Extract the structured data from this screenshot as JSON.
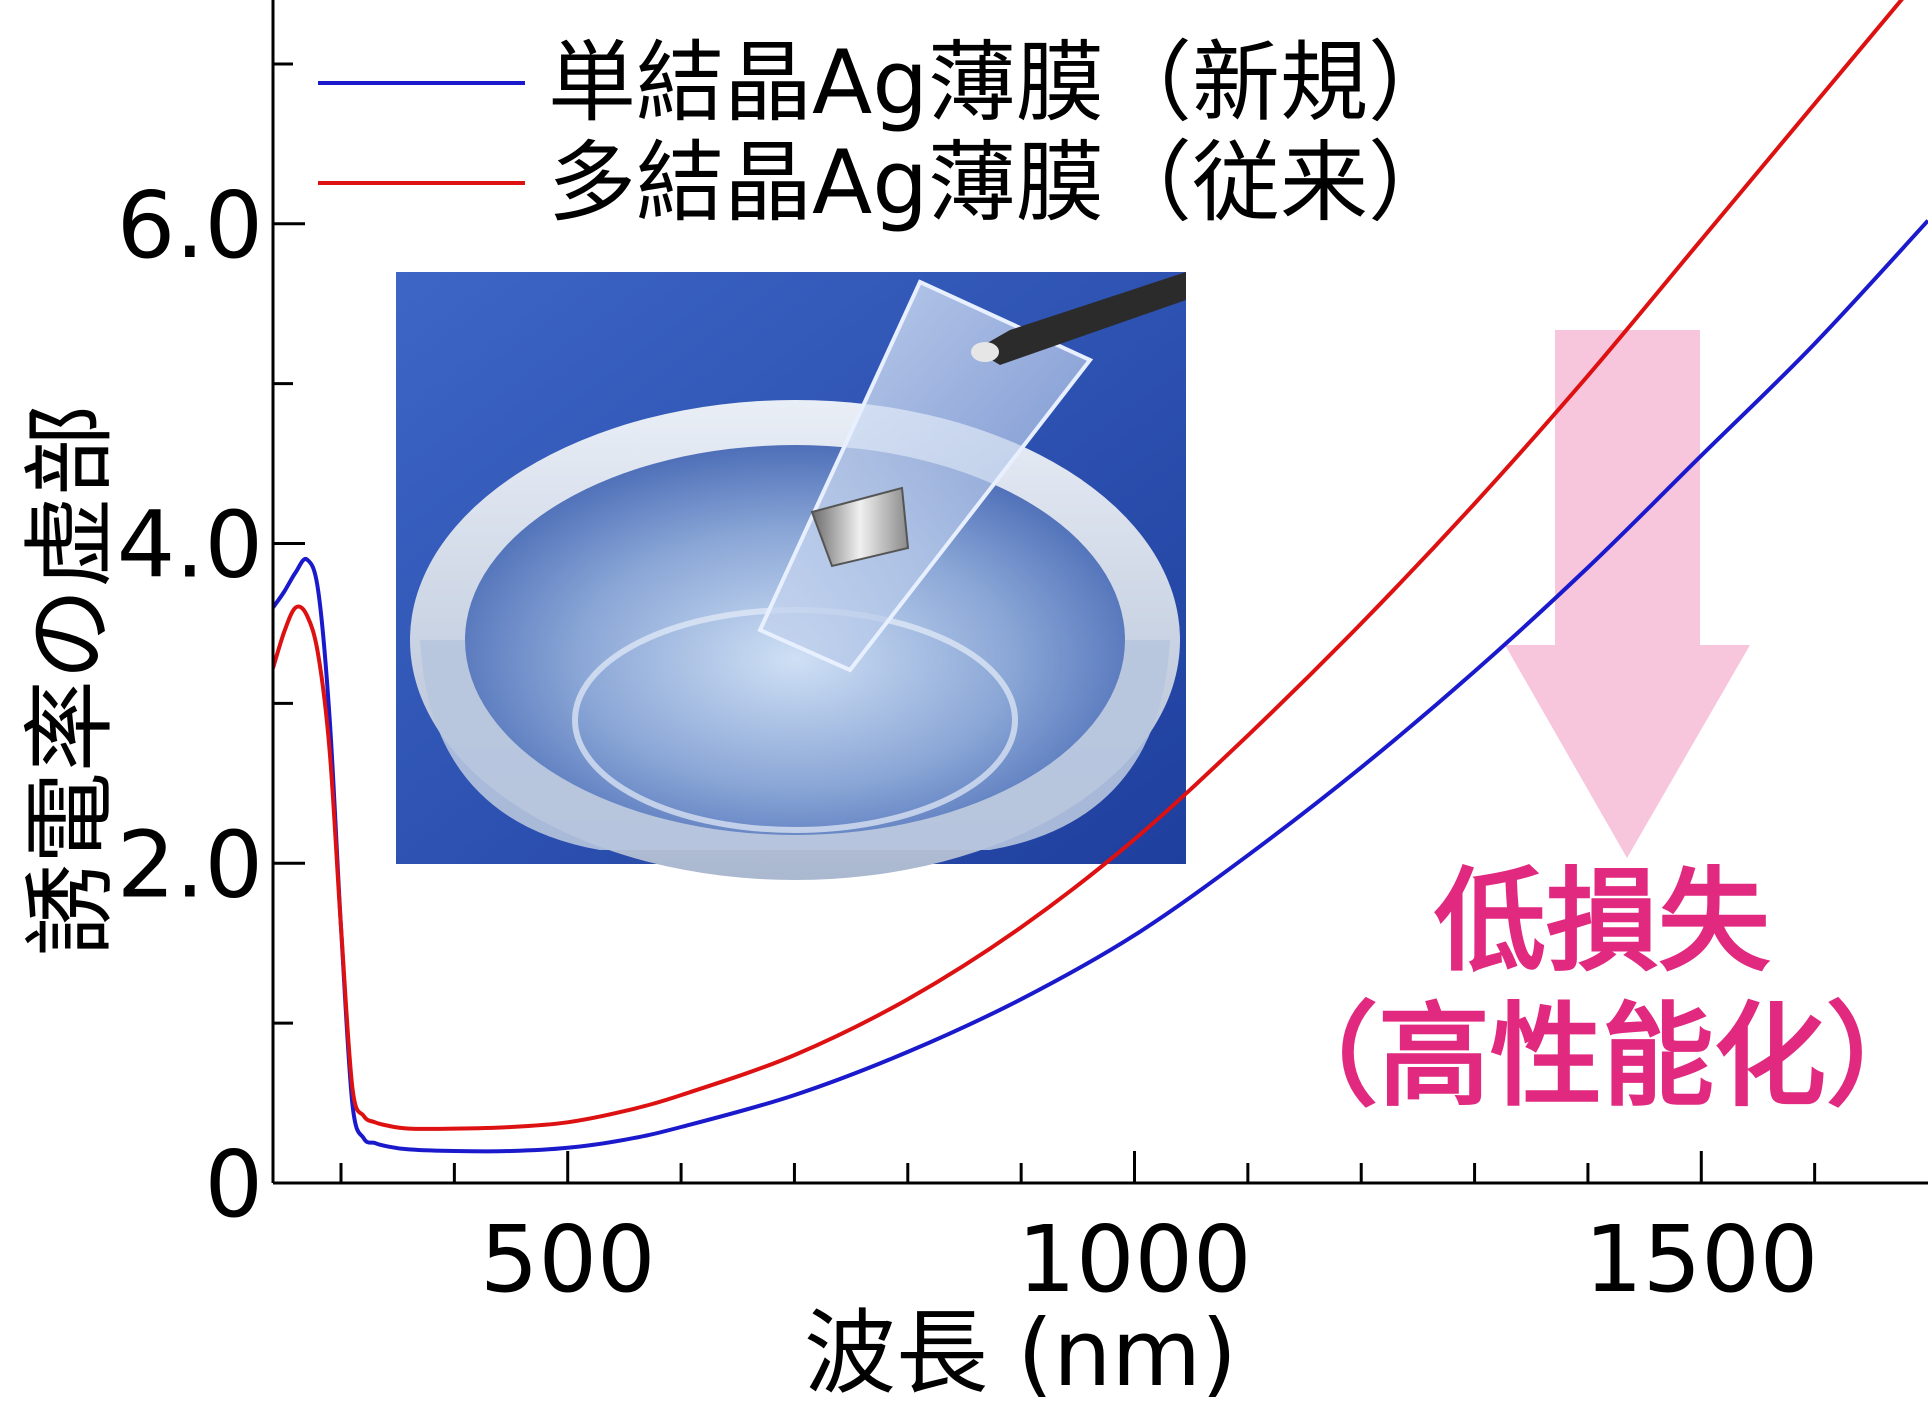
{
  "chart_data": {
    "type": "line",
    "title": "",
    "xlabel": "波長 (nm)",
    "ylabel": "誘電率の虚部",
    "xlim": [
      240,
      1700
    ],
    "ylim": [
      0,
      7.4
    ],
    "x_ticks_major": [
      500,
      1000,
      1500
    ],
    "x_tick_labels": [
      "500",
      "1000",
      "1500"
    ],
    "x_ticks_minor": [
      300,
      400,
      600,
      700,
      800,
      900,
      1100,
      1200,
      1300,
      1400,
      1600
    ],
    "y_ticks_major": [
      0,
      2,
      4,
      6
    ],
    "y_tick_labels": [
      "0",
      "2.0",
      "4.0",
      "6.0"
    ],
    "y_ticks_minor": [
      1,
      3,
      5,
      7
    ],
    "legend_position": "top-left",
    "series": [
      {
        "name": "単結晶Ag薄膜（新規）",
        "color": "#1a1acc",
        "x": [
          240,
          250,
          260,
          270,
          280,
          290,
          300,
          310,
          320,
          330,
          340,
          360,
          400,
          450,
          500,
          550,
          600,
          700,
          800,
          900,
          1000,
          1100,
          1200,
          1300,
          1400,
          1500,
          1600,
          1700
        ],
        "y": [
          3.6,
          3.7,
          3.82,
          3.9,
          3.7,
          2.9,
          1.6,
          0.5,
          0.28,
          0.25,
          0.23,
          0.21,
          0.2,
          0.2,
          0.22,
          0.27,
          0.35,
          0.55,
          0.82,
          1.15,
          1.55,
          2.05,
          2.6,
          3.2,
          3.85,
          4.55,
          5.25,
          6.02
        ]
      },
      {
        "name": "多結晶Ag薄膜（従来）",
        "color": "#dd1111",
        "x": [
          240,
          250,
          260,
          270,
          280,
          290,
          300,
          310,
          320,
          330,
          340,
          360,
          400,
          450,
          500,
          550,
          600,
          700,
          800,
          900,
          1000,
          1100,
          1200,
          1300,
          1400,
          1500,
          1600,
          1700
        ],
        "y": [
          3.22,
          3.45,
          3.6,
          3.55,
          3.3,
          2.7,
          1.6,
          0.6,
          0.42,
          0.38,
          0.36,
          0.34,
          0.34,
          0.35,
          0.38,
          0.45,
          0.55,
          0.8,
          1.15,
          1.6,
          2.15,
          2.8,
          3.5,
          4.25,
          5.05,
          5.9,
          6.75,
          7.6
        ]
      }
    ],
    "annotation": {
      "line1": "低損失",
      "line2": "（高性能化）",
      "arrow_color": "#f7c6dc",
      "text_color": "#e0297f",
      "direction": "down"
    },
    "inset_photo": {
      "icon": "photo-inset-icon"
    }
  }
}
